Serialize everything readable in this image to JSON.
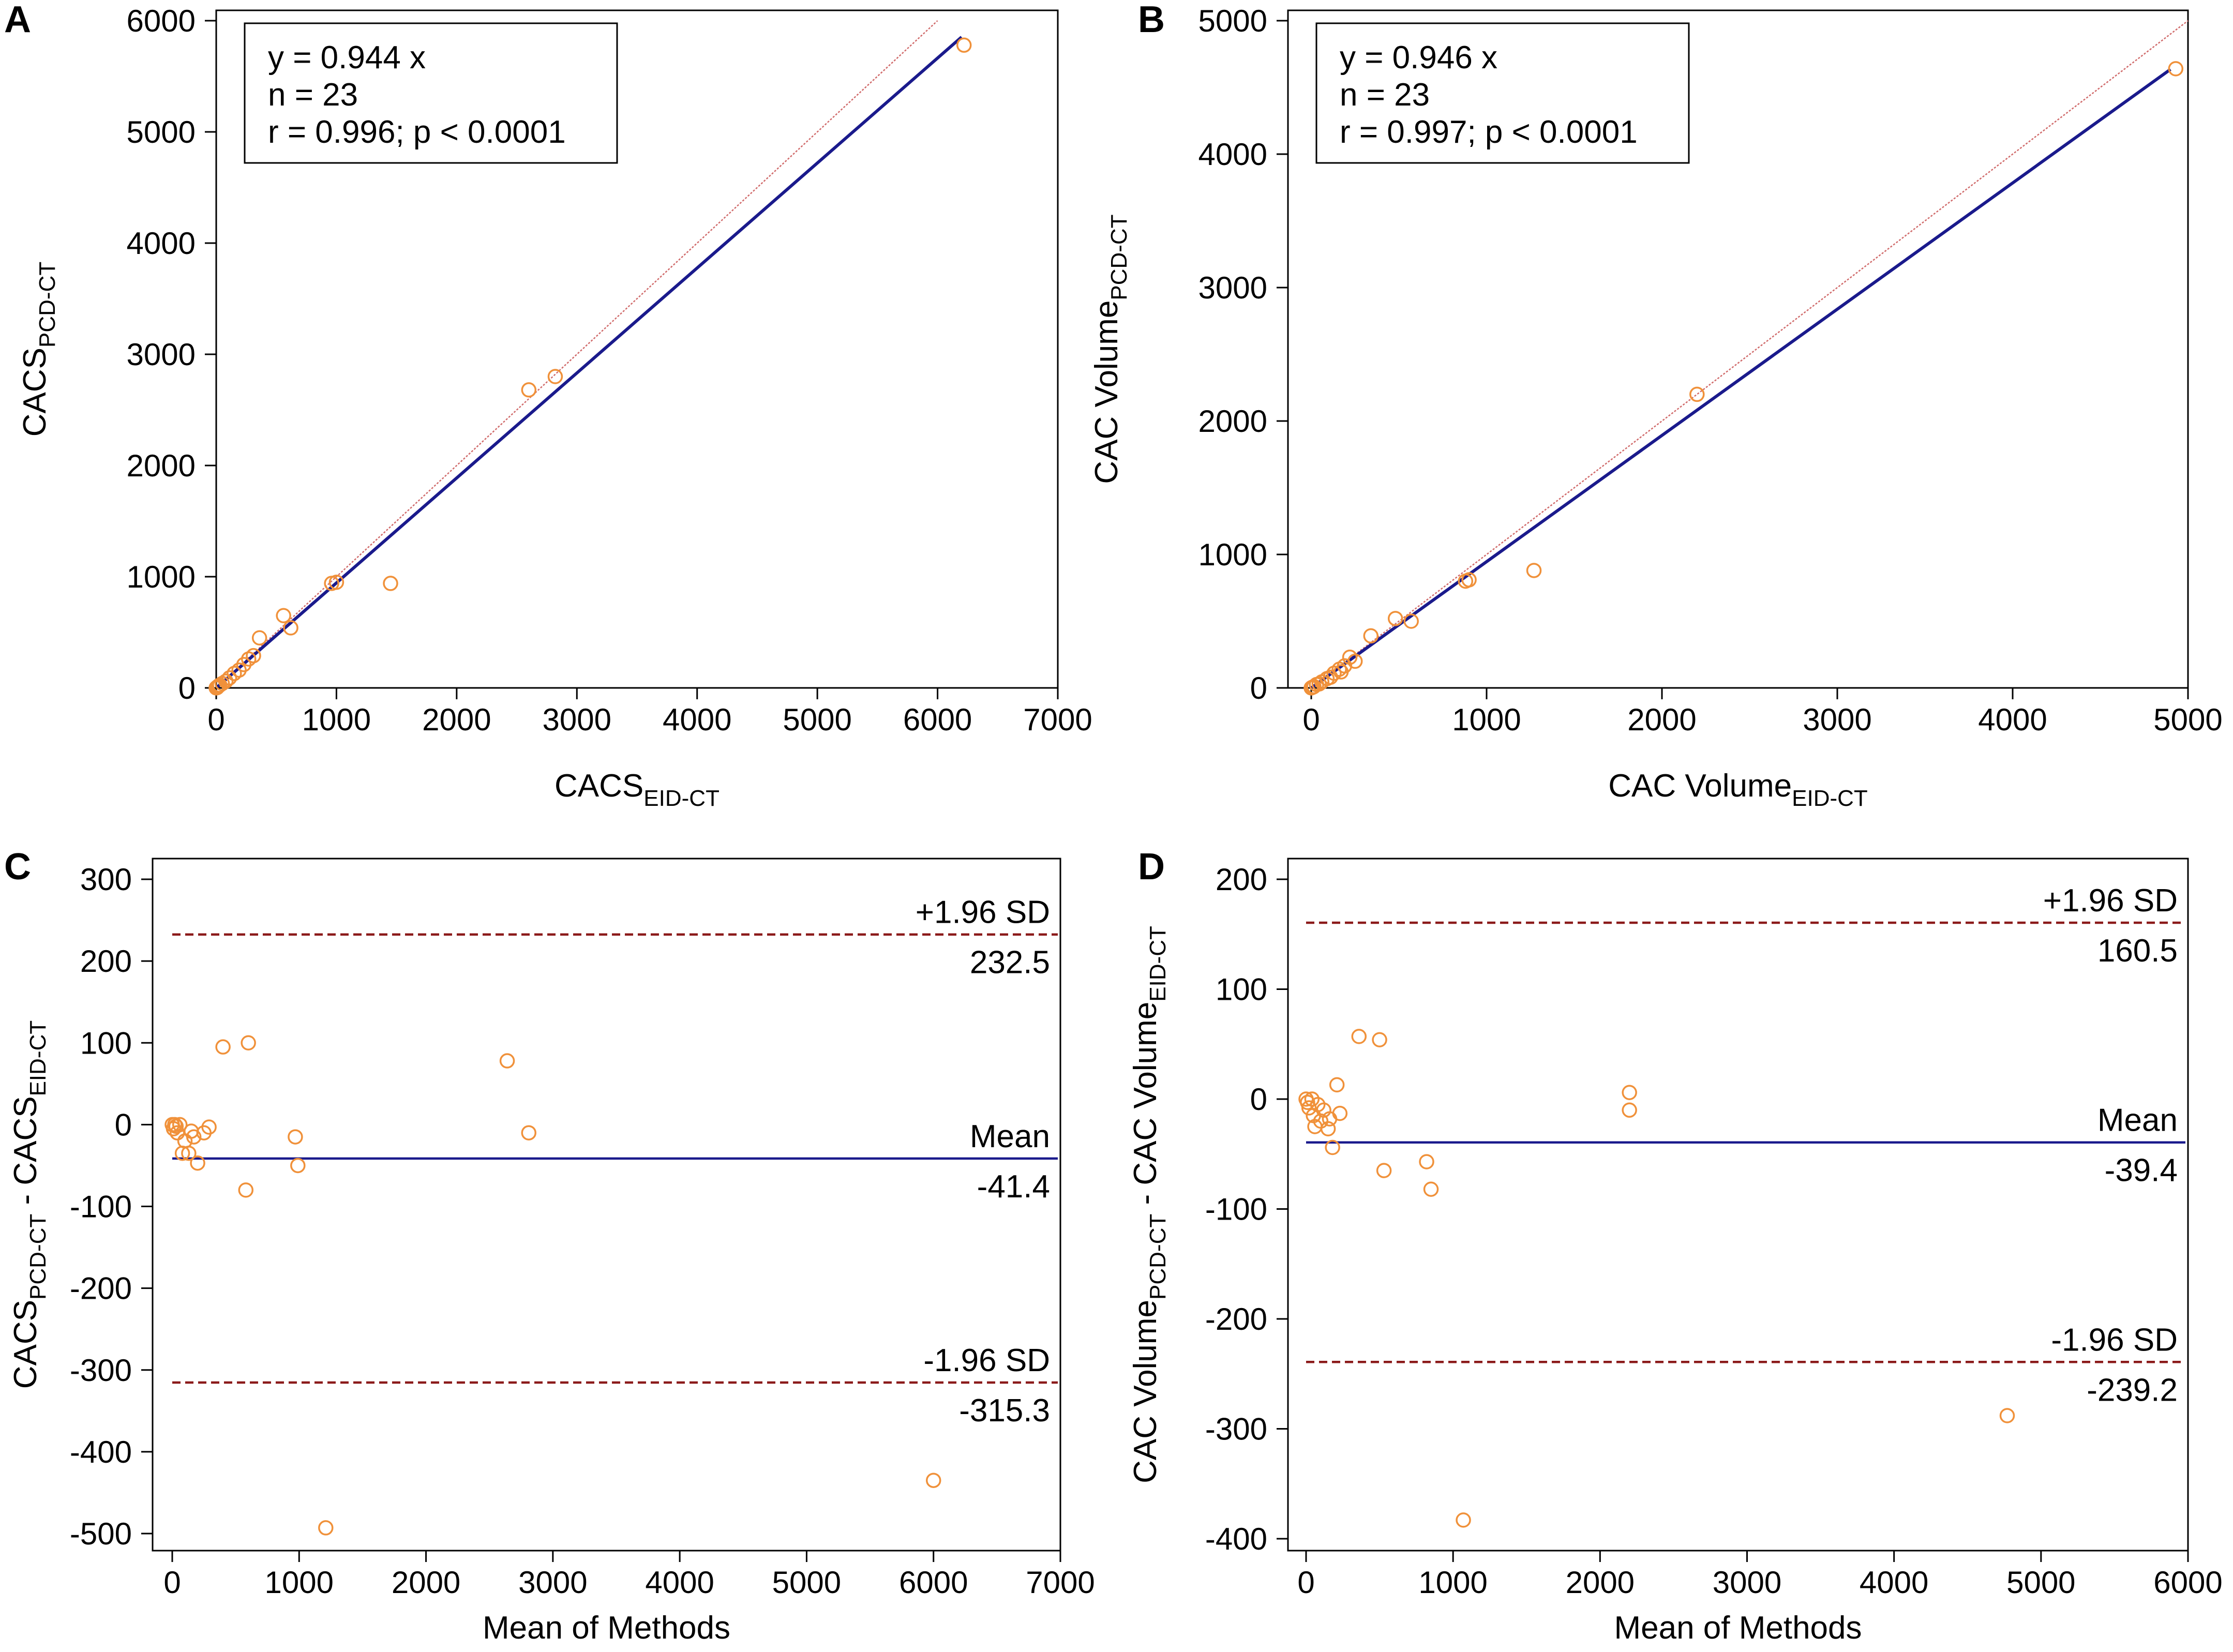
{
  "chart_data": [
    {
      "panel": "A",
      "type": "scatter",
      "xlabel": "CACS",
      "xlabel_sub": "EID-CT",
      "ylabel": "CACS",
      "ylabel_sub": "PCD-CT",
      "xlim": [
        0,
        7000
      ],
      "ylim": [
        0,
        6000
      ],
      "xticks": [
        "0",
        "1000",
        "2000",
        "3000",
        "4000",
        "5000",
        "6000",
        "7000"
      ],
      "yticks": [
        "0",
        "1000",
        "2000",
        "3000",
        "4000",
        "5000",
        "6000"
      ],
      "stats": [
        "y = 0.944  x",
        "n = 23",
        "r = 0.996; p < 0.0001"
      ],
      "regression": {
        "slope": 0.944,
        "x_end": 6200
      },
      "identity_line": {
        "x_end": 6000
      },
      "points": [
        {
          "x": 0,
          "y": 0
        },
        {
          "x": 5,
          "y": 5
        },
        {
          "x": 12,
          "y": 10
        },
        {
          "x": 20,
          "y": 18
        },
        {
          "x": 30,
          "y": 25
        },
        {
          "x": 50,
          "y": 40
        },
        {
          "x": 80,
          "y": 60
        },
        {
          "x": 110,
          "y": 90
        },
        {
          "x": 150,
          "y": 130
        },
        {
          "x": 190,
          "y": 160
        },
        {
          "x": 230,
          "y": 210
        },
        {
          "x": 270,
          "y": 260
        },
        {
          "x": 310,
          "y": 290
        },
        {
          "x": 360,
          "y": 450
        },
        {
          "x": 560,
          "y": 650
        },
        {
          "x": 620,
          "y": 540
        },
        {
          "x": 960,
          "y": 940
        },
        {
          "x": 1000,
          "y": 950
        },
        {
          "x": 1450,
          "y": 940
        },
        {
          "x": 2600,
          "y": 2680
        },
        {
          "x": 2820,
          "y": 2800
        },
        {
          "x": 6220,
          "y": 5780
        },
        {
          "x": 8,
          "y": 3
        }
      ]
    },
    {
      "panel": "B",
      "type": "scatter",
      "xlabel": "CAC Volume",
      "xlabel_sub": "EID-CT",
      "ylabel": "CAC Volume",
      "ylabel_sub": "PCD-CT",
      "xlim": [
        0,
        5000
      ],
      "ylim": [
        0,
        5000
      ],
      "xticks": [
        "0",
        "1000",
        "2000",
        "3000",
        "4000",
        "5000"
      ],
      "yticks": [
        "0",
        "1000",
        "2000",
        "3000",
        "4000",
        "5000"
      ],
      "stats": [
        "y = 0.946  x",
        "n = 23",
        "r = 0.997; p < 0.0001"
      ],
      "regression": {
        "slope": 0.946,
        "x_end": 4900
      },
      "identity_line": {
        "x_end": 5000
      },
      "points": [
        {
          "x": 0,
          "y": 0
        },
        {
          "x": 5,
          "y": 4
        },
        {
          "x": 15,
          "y": 10
        },
        {
          "x": 30,
          "y": 25
        },
        {
          "x": 60,
          "y": 45
        },
        {
          "x": 90,
          "y": 70
        },
        {
          "x": 130,
          "y": 110
        },
        {
          "x": 160,
          "y": 140
        },
        {
          "x": 190,
          "y": 165
        },
        {
          "x": 220,
          "y": 230
        },
        {
          "x": 250,
          "y": 200
        },
        {
          "x": 340,
          "y": 390
        },
        {
          "x": 480,
          "y": 520
        },
        {
          "x": 570,
          "y": 500
        },
        {
          "x": 880,
          "y": 800
        },
        {
          "x": 900,
          "y": 810
        },
        {
          "x": 1270,
          "y": 880
        },
        {
          "x": 2200,
          "y": 2200
        },
        {
          "x": 4930,
          "y": 4640
        },
        {
          "x": 10,
          "y": 6
        },
        {
          "x": 45,
          "y": 30
        },
        {
          "x": 110,
          "y": 80
        },
        {
          "x": 170,
          "y": 120
        }
      ]
    },
    {
      "panel": "C",
      "type": "scatter",
      "subtype": "bland-altman",
      "xlabel": "Mean of Methods",
      "ylabel_parts": [
        "CACS",
        "PCD-CT",
        " - CACS",
        "EID-CT"
      ],
      "xlim": [
        0,
        7000
      ],
      "ylim": [
        -500,
        300
      ],
      "xticks": [
        "0",
        "1000",
        "2000",
        "3000",
        "4000",
        "5000",
        "6000",
        "7000"
      ],
      "yticks": [
        "300",
        "200",
        "100",
        "0",
        "-100",
        "-200",
        "-300",
        "-400",
        "-500"
      ],
      "mean_line": {
        "value": -41.4,
        "label": "Mean",
        "value_label": "-41.4"
      },
      "upper_limit": {
        "value": 232.5,
        "label": "+1.96 SD",
        "value_label": "232.5"
      },
      "lower_limit": {
        "value": -315.3,
        "label": "-1.96 SD",
        "value_label": "-315.3"
      },
      "points": [
        {
          "x": 0,
          "y": 0
        },
        {
          "x": 20,
          "y": 0
        },
        {
          "x": 40,
          "y": -10
        },
        {
          "x": 60,
          "y": 0
        },
        {
          "x": 80,
          "y": -35
        },
        {
          "x": 130,
          "y": -35
        },
        {
          "x": 170,
          "y": -15
        },
        {
          "x": 200,
          "y": -47
        },
        {
          "x": 250,
          "y": -10
        },
        {
          "x": 290,
          "y": -3
        },
        {
          "x": 400,
          "y": 95
        },
        {
          "x": 580,
          "y": -80
        },
        {
          "x": 600,
          "y": 100
        },
        {
          "x": 970,
          "y": -15
        },
        {
          "x": 990,
          "y": -50
        },
        {
          "x": 1210,
          "y": -493
        },
        {
          "x": 2640,
          "y": 78
        },
        {
          "x": 2810,
          "y": -10
        },
        {
          "x": 6000,
          "y": -435
        },
        {
          "x": 10,
          "y": -5
        },
        {
          "x": 30,
          "y": -2
        },
        {
          "x": 100,
          "y": -20
        },
        {
          "x": 150,
          "y": -8
        }
      ]
    },
    {
      "panel": "D",
      "type": "scatter",
      "subtype": "bland-altman",
      "xlabel": "Mean of Methods",
      "ylabel_parts": [
        "CAC Volume",
        "PCD-CT",
        " - CAC Volume",
        "EID-CT"
      ],
      "xlim": [
        0,
        6000
      ],
      "ylim": [
        -400,
        200
      ],
      "xticks": [
        "0",
        "1000",
        "2000",
        "3000",
        "4000",
        "5000",
        "6000"
      ],
      "yticks": [
        "200",
        "100",
        "0",
        "-100",
        "-200",
        "-300",
        "-400"
      ],
      "mean_line": {
        "value": -39.4,
        "label": "Mean",
        "value_label": "-39.4"
      },
      "upper_limit": {
        "value": 160.5,
        "label": "+1.96 SD",
        "value_label": "160.5"
      },
      "lower_limit": {
        "value": -239.2,
        "label": "-1.96 SD",
        "value_label": "-239.2"
      },
      "points": [
        {
          "x": 0,
          "y": 0
        },
        {
          "x": 20,
          "y": -8
        },
        {
          "x": 40,
          "y": 0
        },
        {
          "x": 50,
          "y": -15
        },
        {
          "x": 60,
          "y": -25
        },
        {
          "x": 120,
          "y": -10
        },
        {
          "x": 150,
          "y": -27
        },
        {
          "x": 180,
          "y": -44
        },
        {
          "x": 210,
          "y": 13
        },
        {
          "x": 230,
          "y": -13
        },
        {
          "x": 360,
          "y": 57
        },
        {
          "x": 500,
          "y": 54
        },
        {
          "x": 530,
          "y": -65
        },
        {
          "x": 820,
          "y": -57
        },
        {
          "x": 850,
          "y": -82
        },
        {
          "x": 1070,
          "y": -383
        },
        {
          "x": 2200,
          "y": 6
        },
        {
          "x": 2200,
          "y": -10
        },
        {
          "x": 4770,
          "y": -288
        },
        {
          "x": 10,
          "y": -3
        },
        {
          "x": 80,
          "y": -5
        },
        {
          "x": 100,
          "y": -20
        },
        {
          "x": 160,
          "y": -18
        }
      ]
    }
  ]
}
